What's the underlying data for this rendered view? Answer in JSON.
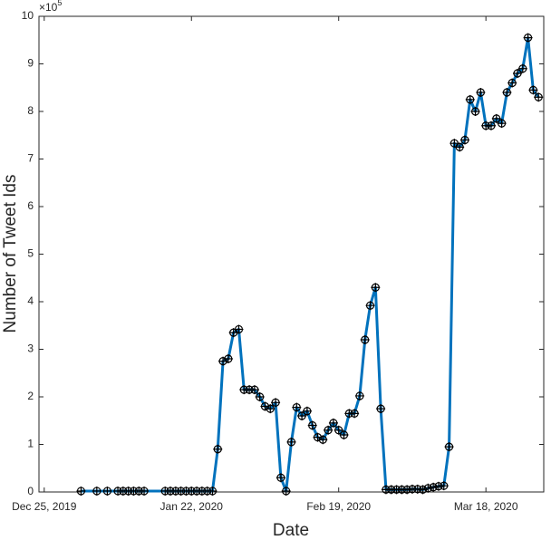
{
  "chart_data": {
    "type": "line",
    "x_label": "Date",
    "y_label": "Number of Tweet Ids",
    "y_multiplier_base": "×10",
    "y_multiplier_exponent": "5",
    "color": "#0072bd",
    "marker_color": "#000000",
    "x": [
      "2020-01-01",
      "2020-01-04",
      "2020-01-06",
      "2020-01-08",
      "2020-01-09",
      "2020-01-10",
      "2020-01-11",
      "2020-01-12",
      "2020-01-13",
      "2020-01-17",
      "2020-01-18",
      "2020-01-19",
      "2020-01-20",
      "2020-01-21",
      "2020-01-22",
      "2020-01-23",
      "2020-01-24",
      "2020-01-25",
      "2020-01-26",
      "2020-01-27",
      "2020-01-28",
      "2020-01-29",
      "2020-01-30",
      "2020-01-31",
      "2020-02-01",
      "2020-02-02",
      "2020-02-03",
      "2020-02-04",
      "2020-02-05",
      "2020-02-06",
      "2020-02-07",
      "2020-02-08",
      "2020-02-09",
      "2020-02-10",
      "2020-02-11",
      "2020-02-12",
      "2020-02-13",
      "2020-02-14",
      "2020-02-15",
      "2020-02-16",
      "2020-02-17",
      "2020-02-18",
      "2020-02-19",
      "2020-02-20",
      "2020-02-21",
      "2020-02-22",
      "2020-02-23",
      "2020-02-24",
      "2020-02-25",
      "2020-02-26",
      "2020-02-27",
      "2020-02-28",
      "2020-02-29",
      "2020-03-01",
      "2020-03-02",
      "2020-03-03",
      "2020-03-04",
      "2020-03-05",
      "2020-03-06",
      "2020-03-07",
      "2020-03-08",
      "2020-03-09",
      "2020-03-10",
      "2020-03-11",
      "2020-03-12",
      "2020-03-13",
      "2020-03-14",
      "2020-03-15",
      "2020-03-16",
      "2020-03-17",
      "2020-03-18",
      "2020-03-19",
      "2020-03-20",
      "2020-03-21",
      "2020-03-22",
      "2020-03-23",
      "2020-03-24",
      "2020-03-25",
      "2020-03-26",
      "2020-03-27",
      "2020-03-28"
    ],
    "values": [
      0.02,
      0.02,
      0.02,
      0.02,
      0.02,
      0.02,
      0.02,
      0.02,
      0.02,
      0.02,
      0.02,
      0.02,
      0.02,
      0.02,
      0.02,
      0.02,
      0.02,
      0.02,
      0.02,
      0.9,
      2.75,
      2.8,
      3.35,
      3.42,
      2.15,
      2.15,
      2.15,
      2.0,
      1.8,
      1.75,
      1.88,
      0.3,
      0.02,
      1.05,
      1.78,
      1.6,
      1.7,
      1.4,
      1.15,
      1.1,
      1.3,
      1.45,
      1.3,
      1.2,
      1.65,
      1.65,
      2.02,
      3.2,
      3.92,
      4.3,
      1.75,
      0.05,
      0.05,
      0.05,
      0.05,
      0.05,
      0.06,
      0.06,
      0.05,
      0.08,
      0.1,
      0.12,
      0.13,
      0.95,
      7.33,
      7.25,
      7.4,
      8.25,
      8.0,
      8.4,
      7.7,
      7.7,
      7.85,
      7.75,
      8.4,
      8.6,
      8.8,
      8.9,
      9.55,
      8.45,
      8.3
    ],
    "xlim": [
      "2019-12-24",
      "2020-03-29"
    ],
    "xticks": [
      {
        "value": "2019-12-25",
        "label": "Dec 25, 2019"
      },
      {
        "value": "2020-01-22",
        "label": "Jan 22, 2020"
      },
      {
        "value": "2020-02-19",
        "label": "Feb 19, 2020"
      },
      {
        "value": "2020-03-18",
        "label": "Mar 18, 2020"
      }
    ],
    "ylim": [
      0,
      10
    ],
    "yticks": [
      0,
      1,
      2,
      3,
      4,
      5,
      6,
      7,
      8,
      9,
      10
    ]
  }
}
